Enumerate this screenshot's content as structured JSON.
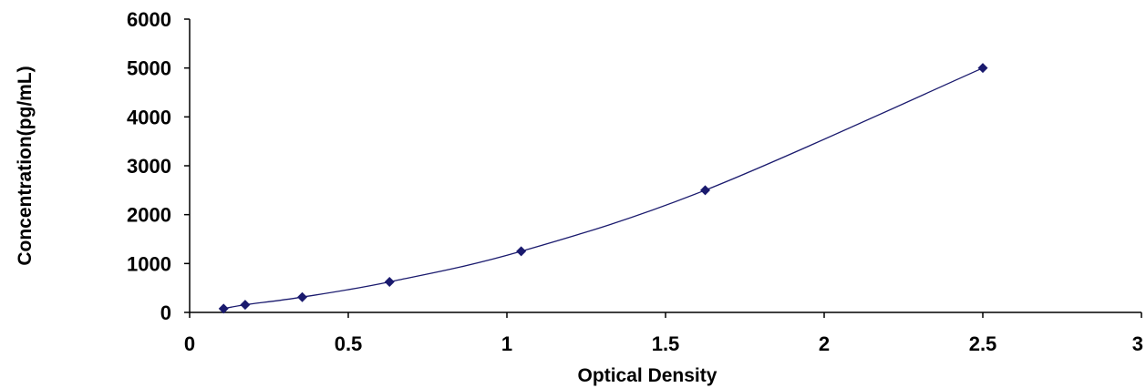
{
  "chart_data": {
    "type": "scatter",
    "title": "",
    "xlabel": "Optical Density",
    "ylabel": "Concentration(pg/mL)",
    "xlim": [
      0,
      3
    ],
    "ylim": [
      0,
      6000
    ],
    "x_ticks": [
      0,
      0.5,
      1,
      1.5,
      2,
      2.5,
      3
    ],
    "x_tick_labels": [
      "0",
      "0.5",
      "1",
      "1.5",
      "2",
      "2.5",
      "3"
    ],
    "y_ticks": [
      0,
      1000,
      2000,
      3000,
      4000,
      5000,
      6000
    ],
    "y_tick_labels": [
      "0",
      "1000",
      "2000",
      "3000",
      "4000",
      "5000",
      "6000"
    ],
    "grid": false,
    "legend": "none",
    "series": [
      {
        "points": [
          {
            "x": 0.107,
            "y": 78
          },
          {
            "x": 0.175,
            "y": 156
          },
          {
            "x": 0.355,
            "y": 313
          },
          {
            "x": 0.63,
            "y": 625
          },
          {
            "x": 1.045,
            "y": 1250
          },
          {
            "x": 1.625,
            "y": 2500
          },
          {
            "x": 2.5,
            "y": 5000
          }
        ],
        "trendline": "smooth"
      }
    ],
    "colors": {
      "marker": "#1a1a6e",
      "line": "#1a1a6e",
      "axis": "#000000"
    }
  }
}
